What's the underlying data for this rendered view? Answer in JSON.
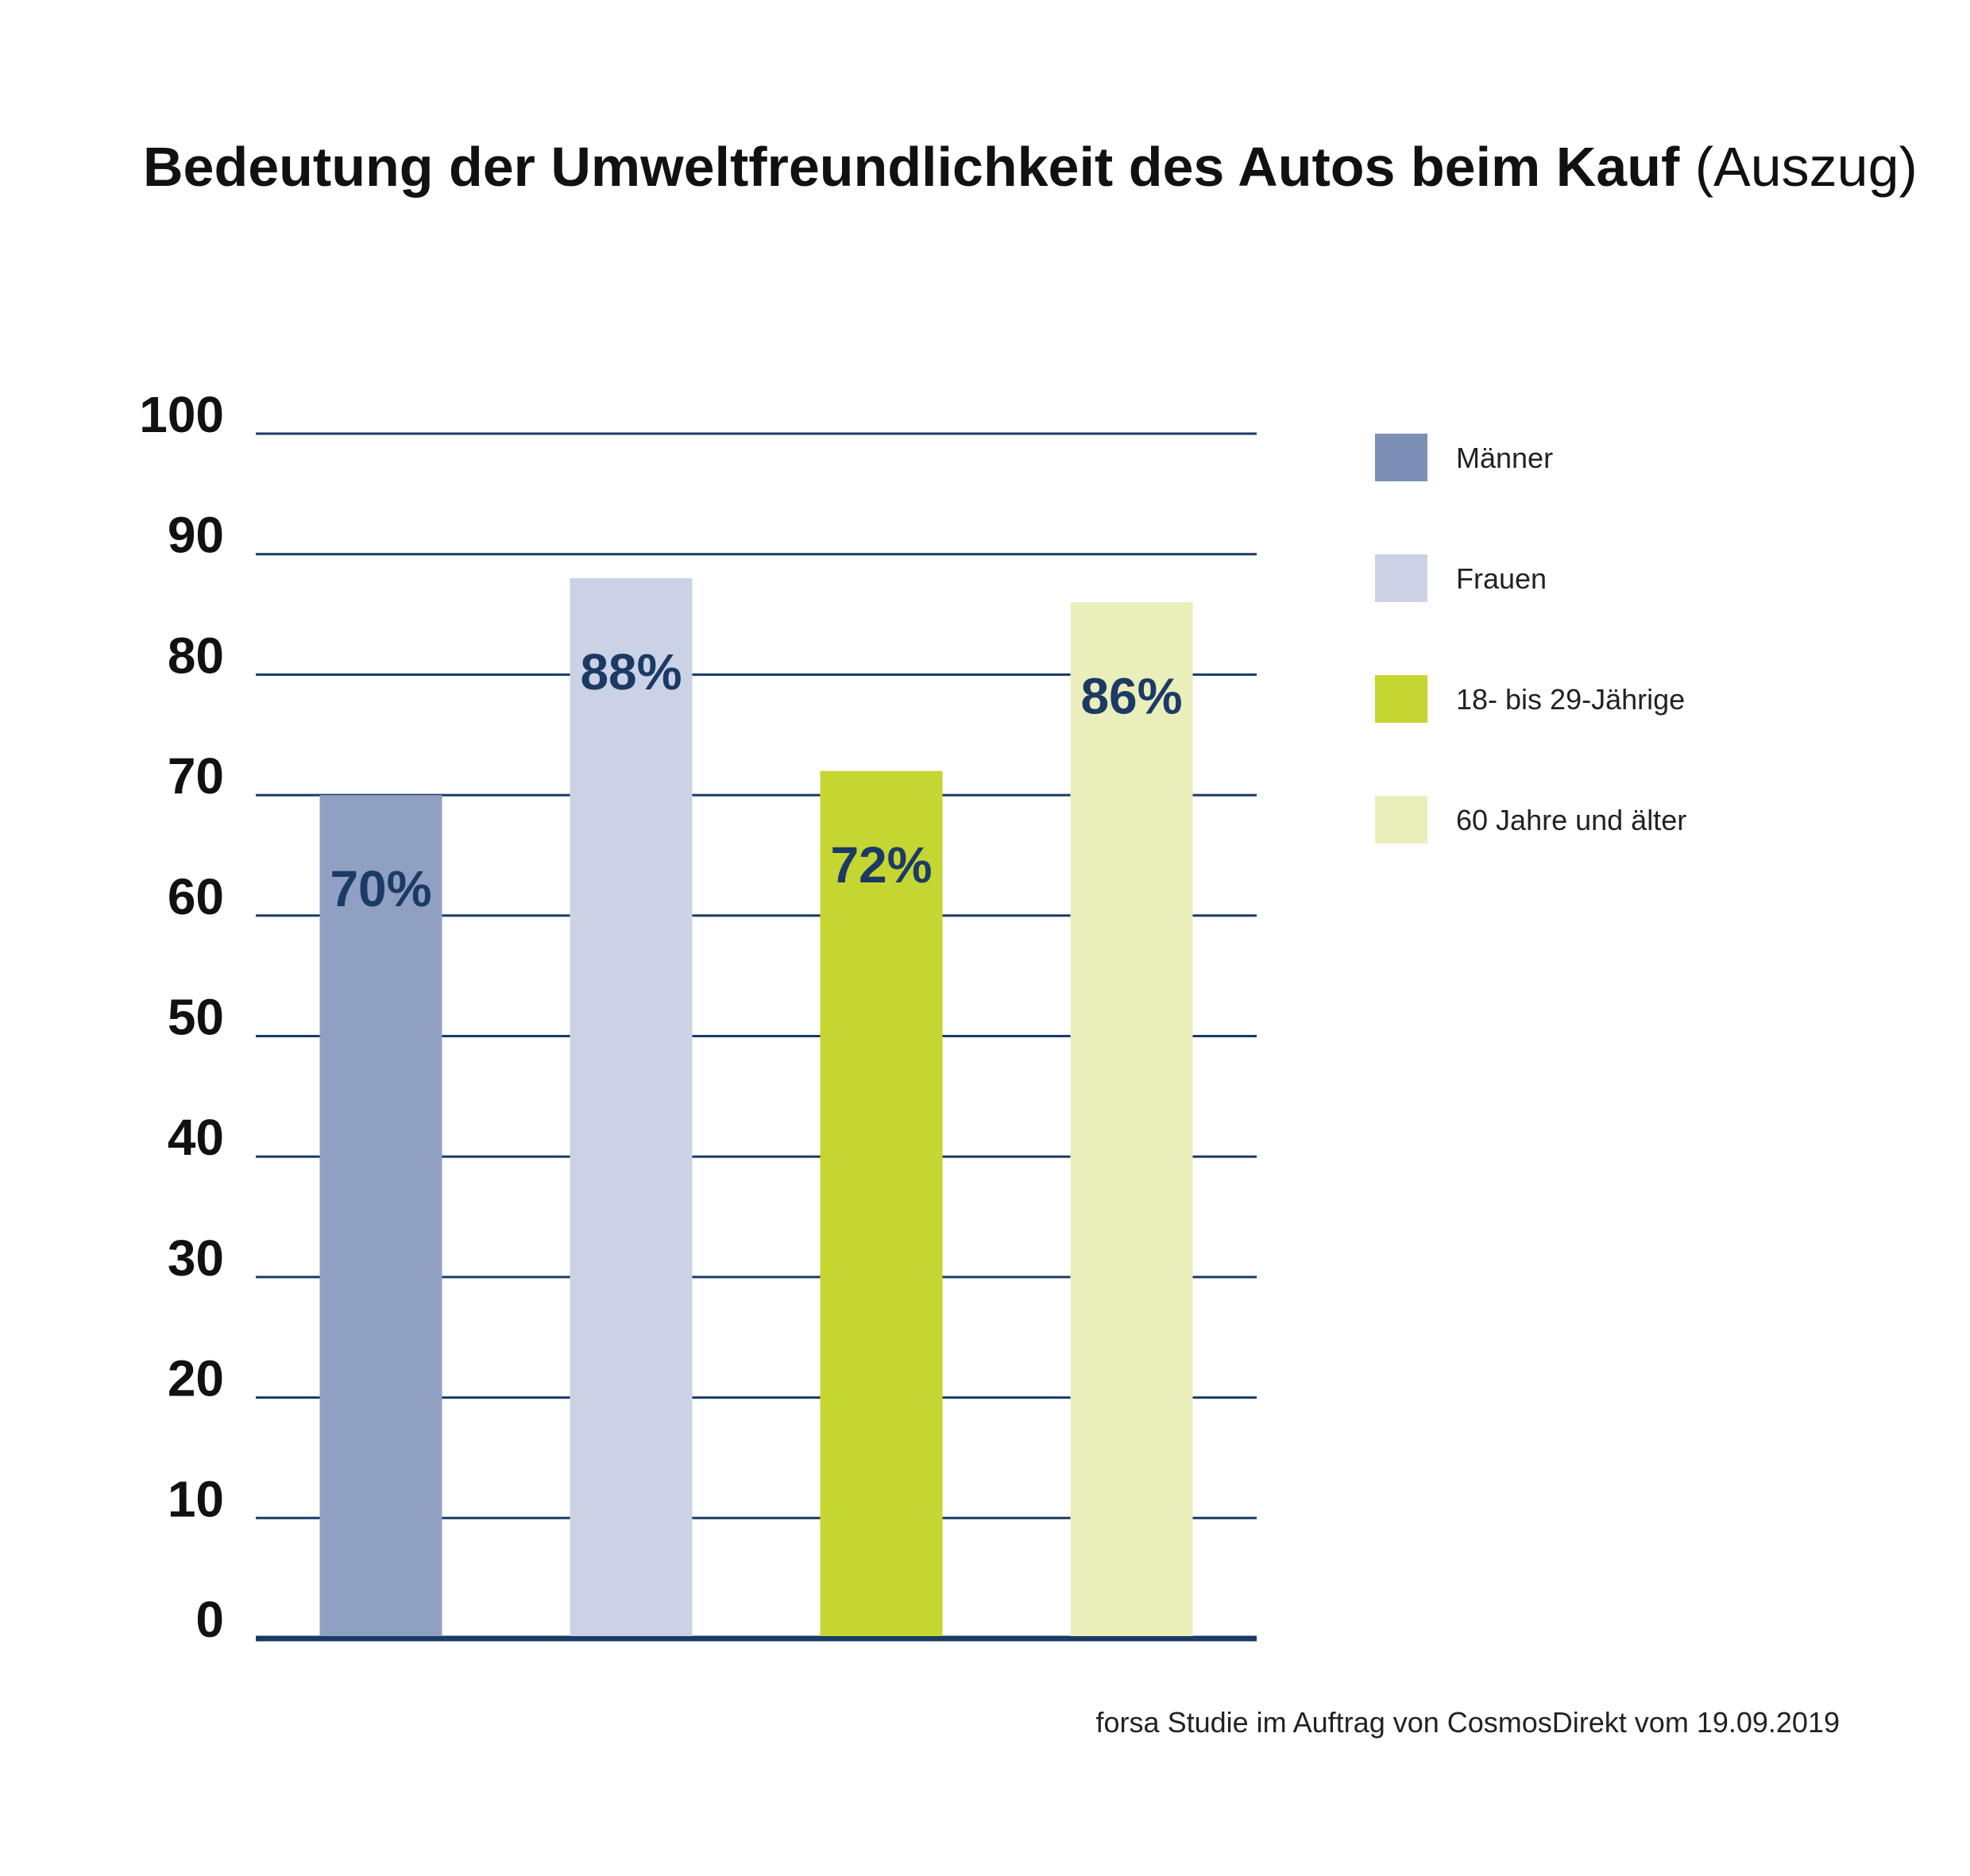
{
  "title": {
    "main": "Bedeutung der Umweltfreundlichkeit des Autos beim Kauf",
    "suffix": "(Auszug)"
  },
  "source": "forsa Studie im Auftrag von CosmosDirekt vom 19.09.2019",
  "chart_data": {
    "type": "bar",
    "title": "Bedeutung der Umweltfreundlichkeit des Autos beim Kauf (Auszug)",
    "categories": [
      "Männer",
      "Frauen",
      "18- bis 29-Jährige",
      "60 Jahre und älter"
    ],
    "values": [
      70,
      88,
      72,
      86
    ],
    "data_labels": [
      "70%",
      "88%",
      "72%",
      "86%"
    ],
    "colors": [
      "#8fa0c2",
      "#cbd2e6",
      "#c5d531",
      "#e9eebb"
    ],
    "ylim": [
      0,
      100
    ],
    "yticks": [
      0,
      10,
      20,
      30,
      40,
      50,
      60,
      70,
      80,
      90,
      100
    ],
    "ytick_labels": [
      "0",
      "10",
      "20",
      "30",
      "40",
      "50",
      "60",
      "70",
      "80",
      "90",
      "100"
    ],
    "grid": true,
    "grid_color": "#1b3a66",
    "label_color": "#1b3a66",
    "legend": {
      "placement": "right",
      "entries": [
        "Männer",
        "Frauen",
        "18- bis 29-Jährige",
        "60 Jahre und älter"
      ],
      "colors": [
        "#7d8fb5",
        "#cbd2e6",
        "#c5d531",
        "#e9eebb"
      ]
    },
    "xlabel": "",
    "ylabel": ""
  }
}
